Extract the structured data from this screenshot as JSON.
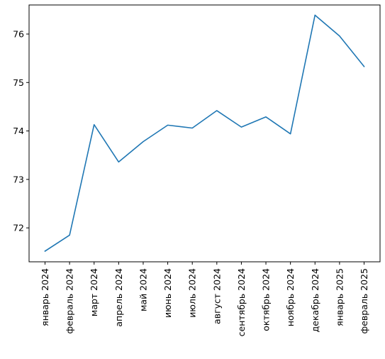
{
  "chart_data": {
    "type": "line",
    "categories": [
      "январь 2024",
      "февраль 2024",
      "март 2024",
      "апрель 2024",
      "май 2024",
      "июнь 2024",
      "июль 2024",
      "август 2024",
      "сентябрь 2024",
      "октябрь 2024",
      "ноябрь 2024",
      "декабрь 2024",
      "январь 2025",
      "февраль 2025"
    ],
    "series": [
      {
        "values": [
          71.52,
          71.85,
          74.13,
          73.36,
          73.78,
          74.12,
          74.06,
          74.42,
          74.08,
          74.29,
          73.94,
          76.39,
          75.96,
          75.33
        ],
        "color": "#1f77b4"
      }
    ],
    "y_ticks": [
      72,
      73,
      74,
      75,
      76
    ],
    "ylim": [
      71.3,
      76.6
    ],
    "grid": false,
    "legend": "none"
  }
}
